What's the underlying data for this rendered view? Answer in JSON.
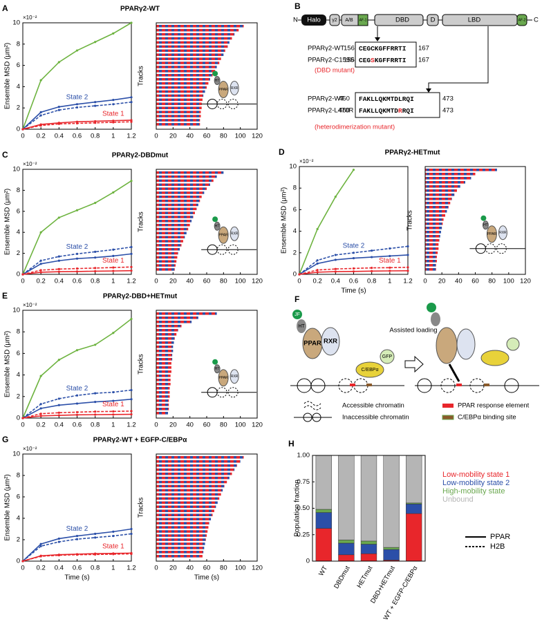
{
  "chart_data": [
    {
      "type": "line",
      "panel": "A",
      "title": "PPARγ2-WT",
      "ylabel": "Ensemble MSD (μm²)",
      "scale_label": "×10⁻²",
      "x": [
        0,
        0.2,
        0.4,
        0.6,
        0.8,
        1.0,
        1.2
      ],
      "xlim": [
        0,
        1.2
      ],
      "xticks": [
        0,
        0.2,
        0.4,
        0.6,
        0.8,
        1,
        1.2
      ],
      "ylim": [
        0,
        10
      ],
      "yticks": [
        0,
        2,
        4,
        6,
        8,
        10
      ],
      "series": [
        {
          "color": "#6db33f",
          "style": "solid",
          "values": [
            0,
            4.6,
            6.3,
            7.4,
            8.2,
            9.0,
            10.0
          ]
        },
        {
          "color": "#2b4fa8",
          "style": "solid",
          "values": [
            0,
            1.6,
            2.1,
            2.35,
            2.55,
            2.75,
            3.0
          ]
        },
        {
          "color": "#2b4fa8",
          "style": "dashed",
          "values": [
            0,
            1.3,
            1.8,
            2.05,
            2.2,
            2.35,
            2.55
          ]
        },
        {
          "color": "#e8262b",
          "style": "solid",
          "values": [
            0,
            0.45,
            0.6,
            0.7,
            0.75,
            0.8,
            0.85
          ]
        },
        {
          "color": "#e8262b",
          "style": "dashed",
          "values": [
            0,
            0.35,
            0.5,
            0.55,
            0.6,
            0.65,
            0.7
          ]
        }
      ],
      "annotations": [
        {
          "text": "State 2",
          "color": "#2b4fa8"
        },
        {
          "text": "State 1",
          "color": "#e8262b"
        }
      ]
    },
    {
      "type": "tracks",
      "ylabel": "Tracks",
      "xlim": [
        0,
        120
      ],
      "xticks": [
        0,
        20,
        40,
        60,
        80,
        100,
        120
      ],
      "inset_labels": [
        "HT",
        "PPAR",
        "RXR"
      ],
      "values": [
        104,
        98,
        93,
        90,
        87,
        85,
        82,
        80,
        77,
        75,
        72,
        70,
        67,
        64,
        62,
        60,
        58,
        56,
        55,
        54,
        54,
        53,
        53,
        52,
        52
      ]
    },
    {
      "type": "line",
      "panel": "C",
      "title": "PPARγ2-DBDmut",
      "ylabel": "Ensemble MSD (μm²)",
      "scale_label": "×10⁻²",
      "x": [
        0,
        0.2,
        0.4,
        0.6,
        0.8,
        1.0,
        1.2
      ],
      "xlim": [
        0,
        1.2
      ],
      "xticks": [
        0,
        0.2,
        0.4,
        0.6,
        0.8,
        1,
        1.2
      ],
      "ylim": [
        0,
        10
      ],
      "yticks": [
        0,
        2,
        4,
        6,
        8,
        10
      ],
      "series": [
        {
          "color": "#6db33f",
          "style": "solid",
          "values": [
            0,
            4.0,
            5.4,
            6.1,
            6.8,
            7.8,
            8.9
          ]
        },
        {
          "color": "#2b4fa8",
          "style": "dashed",
          "values": [
            0,
            1.3,
            1.7,
            1.95,
            2.15,
            2.35,
            2.6
          ]
        },
        {
          "color": "#2b4fa8",
          "style": "solid",
          "values": [
            0,
            1.0,
            1.3,
            1.5,
            1.6,
            1.75,
            1.95
          ]
        },
        {
          "color": "#e8262b",
          "style": "dashed",
          "values": [
            0,
            0.4,
            0.5,
            0.55,
            0.6,
            0.65,
            0.7
          ]
        },
        {
          "color": "#e8262b",
          "style": "solid",
          "values": [
            0,
            0.2,
            0.25,
            0.27,
            0.3,
            0.32,
            0.35
          ]
        }
      ],
      "annotations": [
        {
          "text": "State 2",
          "color": "#2b4fa8"
        },
        {
          "text": "State 1",
          "color": "#e8262b"
        }
      ]
    },
    {
      "type": "tracks",
      "ylabel": "Tracks",
      "xlim": [
        0,
        120
      ],
      "xticks": [
        0,
        20,
        40,
        60,
        80,
        100,
        120
      ],
      "inset_labels": [
        "HT",
        "PPAR",
        "RXR"
      ],
      "values": [
        80,
        72,
        68,
        64,
        60,
        57,
        54,
        52,
        50,
        48,
        46,
        44,
        42,
        40,
        38,
        36,
        34,
        32,
        30,
        28,
        26,
        25,
        24,
        23,
        22
      ]
    },
    {
      "type": "line",
      "panel": "D",
      "title": "PPARγ2-HETmut",
      "ylabel": "Ensemble MSD (μm²)",
      "xlabel": "Time (s)",
      "scale_label": "×10⁻²",
      "x": [
        0,
        0.2,
        0.4,
        0.6,
        0.8,
        1.0,
        1.2
      ],
      "xlim": [
        0,
        1.2
      ],
      "xticks": [
        0,
        0.2,
        0.4,
        0.6,
        0.8,
        1,
        1.2
      ],
      "ylim": [
        0,
        10
      ],
      "yticks": [
        0,
        2,
        4,
        6,
        8,
        10
      ],
      "series": [
        {
          "color": "#6db33f",
          "style": "solid",
          "values": [
            0,
            4.2,
            7.2,
            9.7,
            null,
            null,
            null
          ]
        },
        {
          "color": "#2b4fa8",
          "style": "dashed",
          "values": [
            0,
            1.3,
            1.8,
            2.0,
            2.2,
            2.4,
            2.6
          ]
        },
        {
          "color": "#2b4fa8",
          "style": "solid",
          "values": [
            0,
            1.0,
            1.35,
            1.5,
            1.6,
            1.7,
            1.8
          ]
        },
        {
          "color": "#e8262b",
          "style": "dashed",
          "values": [
            0,
            0.4,
            0.5,
            0.55,
            0.6,
            0.62,
            0.65
          ]
        },
        {
          "color": "#e8262b",
          "style": "solid",
          "values": [
            0,
            0.2,
            0.25,
            0.27,
            0.3,
            0.32,
            0.33
          ]
        }
      ],
      "annotations": [
        {
          "text": "State 2",
          "color": "#2b4fa8"
        },
        {
          "text": "State 1",
          "color": "#e8262b"
        }
      ]
    },
    {
      "type": "tracks",
      "ylabel": "Tracks",
      "xlim": [
        0,
        120
      ],
      "xticks": [
        0,
        20,
        40,
        60,
        80,
        100,
        120
      ],
      "inset_labels": [
        "HT",
        "PPAR",
        "RXR"
      ],
      "values": [
        86,
        60,
        55,
        48,
        42,
        38,
        35,
        32,
        30,
        28,
        26,
        24,
        22,
        21,
        20,
        19,
        18,
        17,
        16,
        16,
        15,
        14,
        14,
        13,
        13
      ]
    },
    {
      "type": "line",
      "panel": "E",
      "title": "PPARγ2-DBD+HETmut",
      "ylabel": "Ensemble MSD (μm²)",
      "scale_label": "×10⁻²",
      "x": [
        0,
        0.2,
        0.4,
        0.6,
        0.8,
        1.0,
        1.2
      ],
      "xlim": [
        0,
        1.2
      ],
      "xticks": [
        0,
        0.2,
        0.4,
        0.6,
        0.8,
        1,
        1.2
      ],
      "ylim": [
        0,
        10
      ],
      "yticks": [
        0,
        2,
        4,
        6,
        8,
        10
      ],
      "series": [
        {
          "color": "#6db33f",
          "style": "solid",
          "values": [
            0,
            3.9,
            5.4,
            6.3,
            6.8,
            7.9,
            9.2
          ]
        },
        {
          "color": "#2b4fa8",
          "style": "dashed",
          "values": [
            0,
            1.3,
            1.8,
            2.1,
            2.3,
            2.4,
            2.6
          ]
        },
        {
          "color": "#2b4fa8",
          "style": "solid",
          "values": [
            0,
            0.9,
            1.2,
            1.35,
            1.5,
            1.6,
            1.75
          ]
        },
        {
          "color": "#e8262b",
          "style": "dashed",
          "values": [
            0,
            0.4,
            0.5,
            0.55,
            0.6,
            0.62,
            0.65
          ]
        },
        {
          "color": "#e8262b",
          "style": "solid",
          "values": [
            0,
            0.2,
            0.25,
            0.3,
            0.32,
            0.33,
            0.35
          ]
        }
      ],
      "annotations": [
        {
          "text": "State 2",
          "color": "#2b4fa8"
        },
        {
          "text": "State 1",
          "color": "#e8262b"
        }
      ]
    },
    {
      "type": "tracks",
      "ylabel": "Tracks",
      "xlim": [
        0,
        120
      ],
      "xticks": [
        0,
        20,
        40,
        60,
        80,
        100,
        120
      ],
      "inset_labels": [
        "HT",
        "PPAR",
        "RXR"
      ],
      "values": [
        72,
        50,
        42,
        30,
        26,
        24,
        22,
        21,
        20,
        20,
        19,
        19,
        18,
        18,
        18,
        17,
        17,
        17,
        16,
        16,
        16,
        15,
        15,
        15,
        14
      ]
    },
    {
      "type": "line",
      "panel": "G",
      "title": "PPARγ2-WT +  EGFP-C/EBPα",
      "ylabel": "Ensemble MSD (μm²)",
      "xlabel": "Time (s)",
      "scale_label": "×10⁻²",
      "x": [
        0,
        0.2,
        0.4,
        0.6,
        0.8,
        1.0,
        1.2
      ],
      "xlim": [
        0,
        1.2
      ],
      "xticks": [
        0,
        0.2,
        0.4,
        0.6,
        0.8,
        1,
        1.2
      ],
      "ylim": [
        0,
        10
      ],
      "yticks": [
        0,
        2,
        4,
        6,
        8,
        10
      ],
      "series": [
        {
          "color": "#2b4fa8",
          "style": "solid",
          "values": [
            0,
            1.6,
            2.1,
            2.35,
            2.55,
            2.75,
            3.0
          ]
        },
        {
          "color": "#2b4fa8",
          "style": "dashed",
          "values": [
            0,
            1.4,
            1.8,
            2.05,
            2.2,
            2.35,
            2.55
          ]
        },
        {
          "color": "#e8262b",
          "style": "solid",
          "values": [
            0,
            0.5,
            0.6,
            0.65,
            0.7,
            0.72,
            0.75
          ]
        },
        {
          "color": "#e8262b",
          "style": "dashed",
          "values": [
            0,
            0.45,
            0.55,
            0.6,
            0.62,
            0.65,
            0.68
          ]
        }
      ],
      "annotations": [
        {
          "text": "State 2",
          "color": "#2b4fa8"
        },
        {
          "text": "State 1",
          "color": "#e8262b"
        }
      ]
    },
    {
      "type": "tracks",
      "ylabel": "Tracks",
      "xlabel": "Time (s)",
      "xlim": [
        0,
        120
      ],
      "xticks": [
        0,
        20,
        40,
        60,
        80,
        100,
        120
      ],
      "values": [
        104,
        100,
        96,
        93,
        90,
        87,
        84,
        81,
        79,
        77,
        75,
        73,
        71,
        69,
        67,
        65,
        63,
        62,
        61,
        60,
        59,
        58,
        57,
        56,
        55
      ]
    },
    {
      "type": "stacked_bar",
      "panel": "H",
      "ylabel": "Population fraction",
      "categories": [
        "WT",
        "DBDmut",
        "HETmut",
        "DBD+HETmut",
        "WT + EGFP-C/EBPα"
      ],
      "ylim": [
        0,
        1
      ],
      "yticks": [
        0,
        0.25,
        {
          "value": 0.5,
          "label": "0.50"
        },
        0.75,
        {
          "value": 1,
          "label": "1.00"
        }
      ],
      "series": [
        {
          "name": "Low-mobility state 1",
          "color": "#e8262b",
          "values": [
            0.31,
            0.06,
            0.07,
            0.01,
            0.45
          ]
        },
        {
          "name": "Low-mobility state 2",
          "color": "#2b4fa8",
          "values": [
            0.15,
            0.11,
            0.09,
            0.1,
            0.09
          ]
        },
        {
          "name": "High-mobility state",
          "color": "#6aa84f",
          "values": [
            0.03,
            0.03,
            0.03,
            0.02,
            0.01
          ]
        },
        {
          "name": "Unbound",
          "color": "#b5b5b5",
          "values": [
            0.51,
            0.8,
            0.81,
            0.87,
            0.45
          ]
        }
      ]
    }
  ],
  "line_style_legend": {
    "solid": "PPAR",
    "dashed": "H2B"
  },
  "diagram_B": {
    "panel": "B",
    "n_term": "N",
    "c_term": "C",
    "domains": [
      "Halo",
      "γ2",
      "A/B",
      "DBD",
      "D",
      "LBD"
    ],
    "af1": "AF-1",
    "af2": "AF-2",
    "rows": [
      {
        "name": "PPARγ2-WT",
        "start": "156",
        "sequence": [
          "CEGCKGFFRRTI"
        ],
        "end": "167"
      },
      {
        "name": "PPARγ2-C159S",
        "start": "156",
        "sequence": [
          "CEG",
          "S",
          "KGFFRRTI"
        ],
        "end": "167"
      },
      {
        "name": "PPARγ2-WT",
        "start": "460",
        "sequence": [
          "FAKLLQKMTDLRQI"
        ],
        "end": "473"
      },
      {
        "name": "PPARγ2-L470R",
        "start": "460",
        "sequence": [
          "FAKLLQKMTD",
          "R",
          "RQI"
        ],
        "end": "473"
      }
    ],
    "note_1": "(DBD mutant)",
    "note_2": "(heterodimerization mutant)"
  },
  "diagram_F": {
    "panel": "F",
    "caption": "Assisted loading",
    "jf": "JF",
    "ht": "HT",
    "ppar": "PPAR",
    "rxr": "RXR",
    "cebp": "C/EBPα",
    "gfp": "GFP",
    "legend": [
      "Accessible chromatin",
      "Inaccessible chromatin",
      "PPAR response element",
      "C/EBPα binding site"
    ]
  }
}
